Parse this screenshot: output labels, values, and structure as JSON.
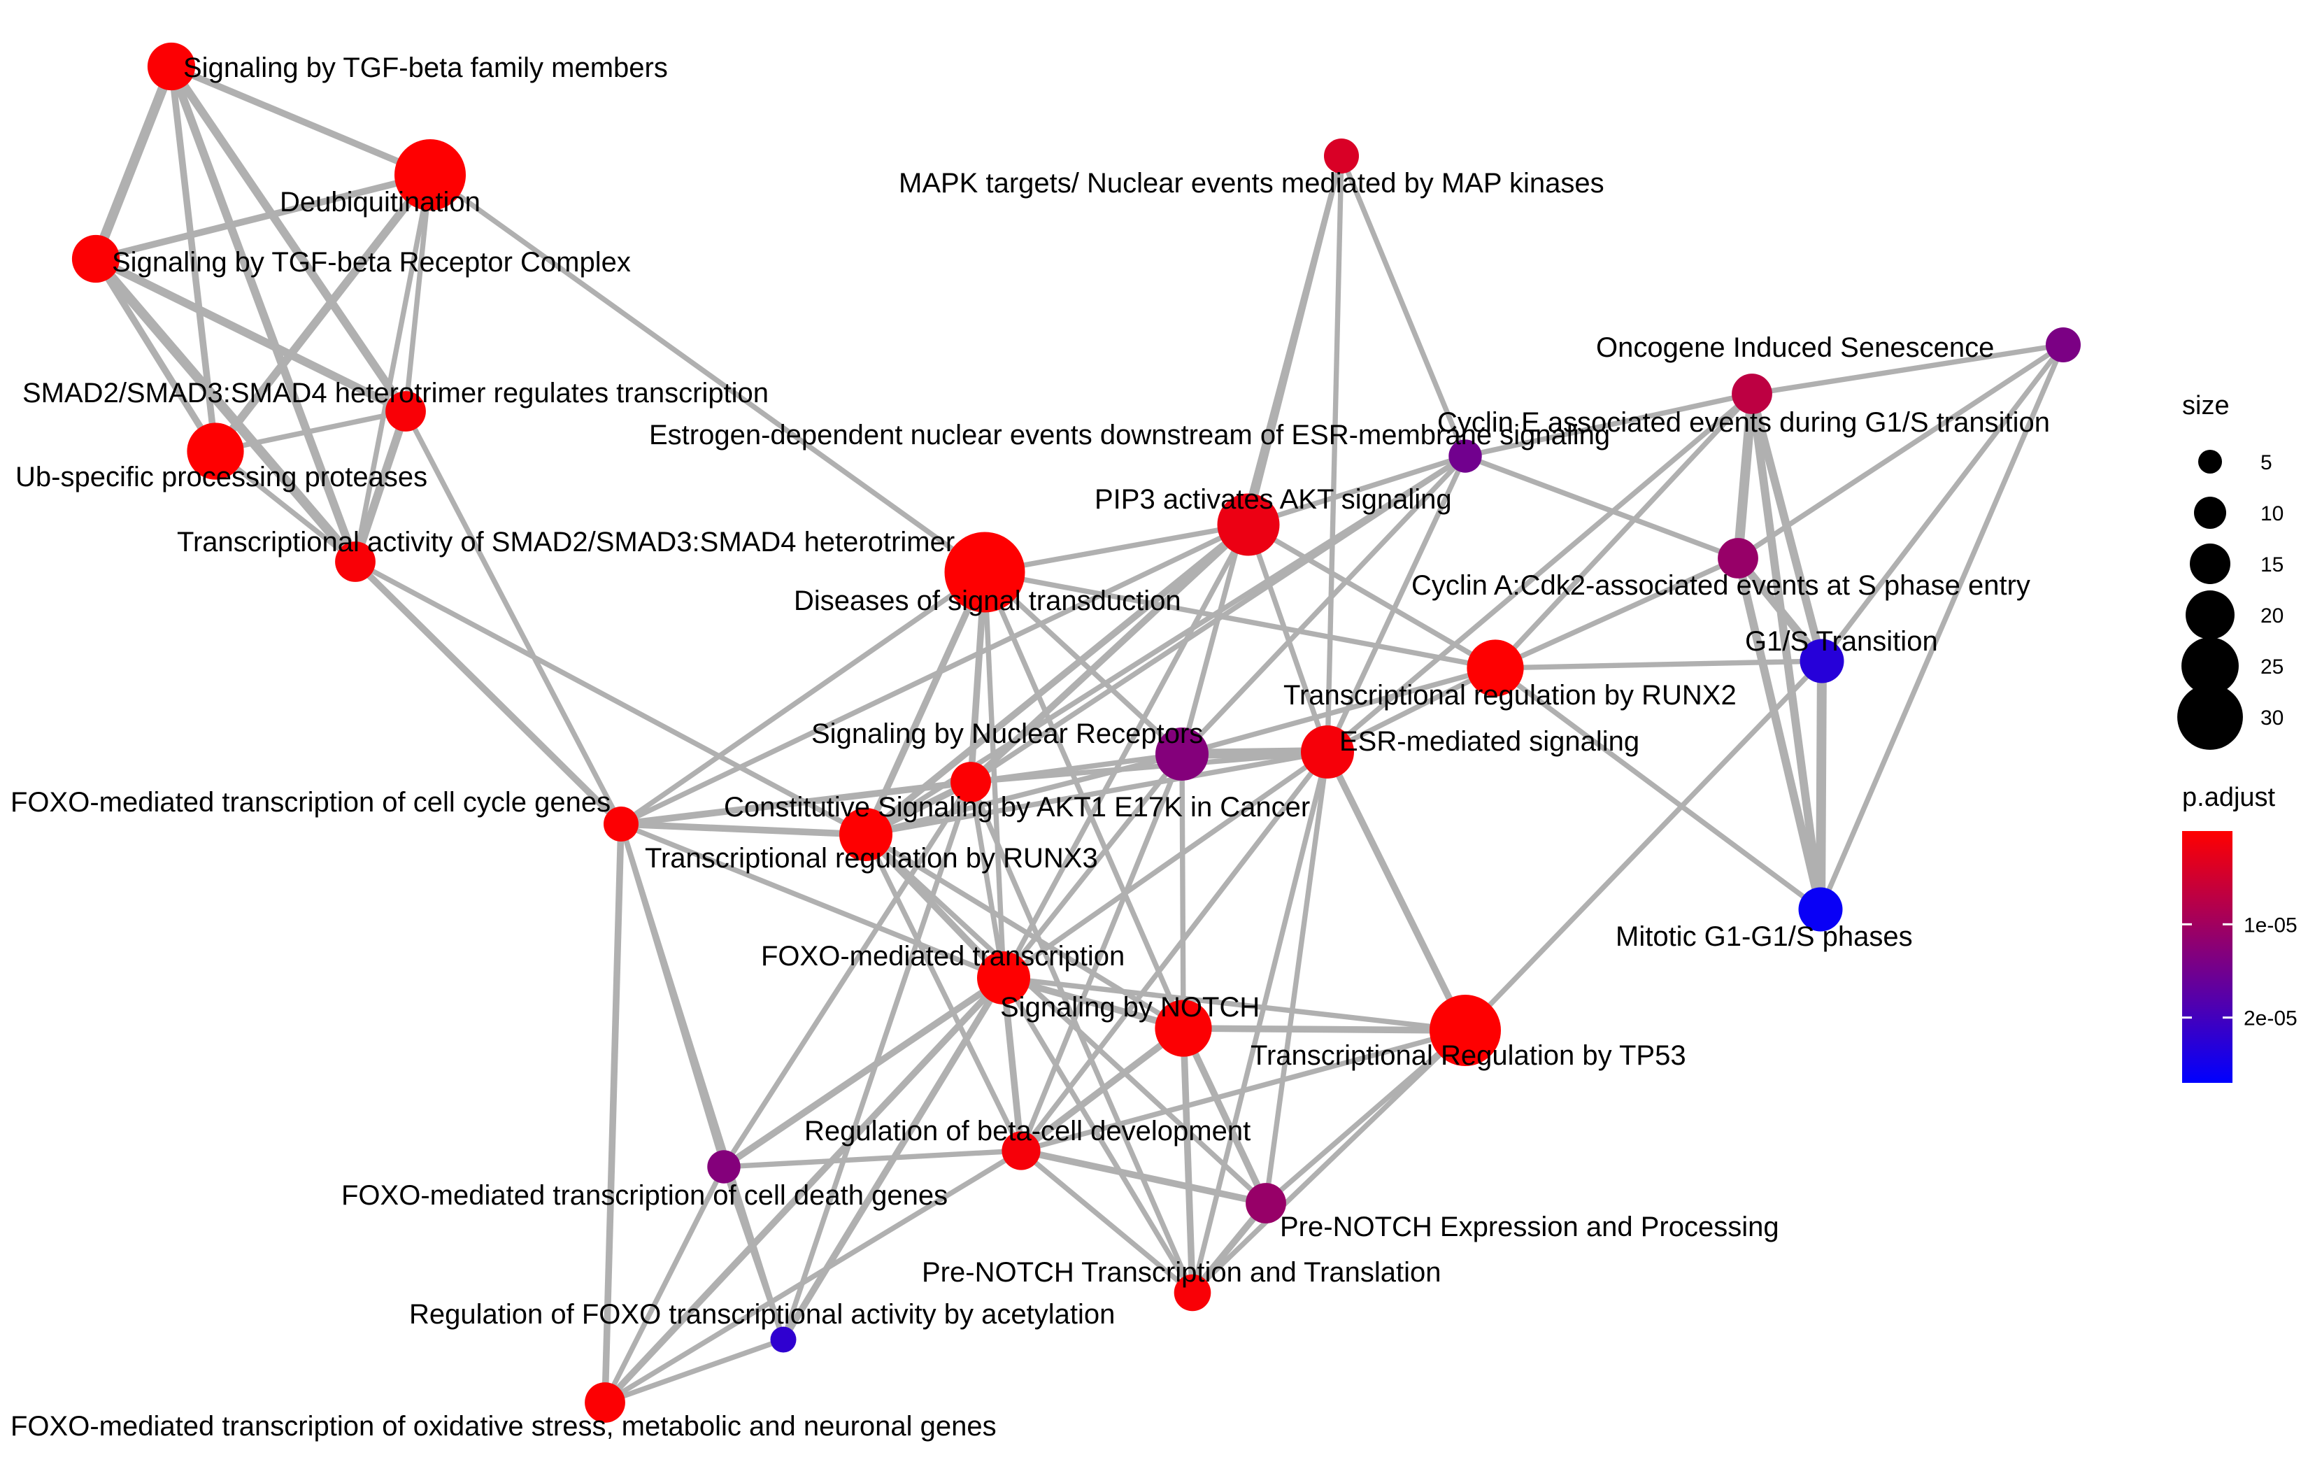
{
  "network": {
    "nodes": [
      {
        "id": "tgf_family",
        "label": "Signaling by TGF-beta family members",
        "size": 17,
        "p_adjust": 3e-07
      },
      {
        "id": "deubiq",
        "label": "Deubiquitination",
        "size": 30,
        "p_adjust": 1e-07
      },
      {
        "id": "tgf_receptor",
        "label": "Signaling by TGF-beta Receptor Complex",
        "size": 17,
        "p_adjust": 3e-07
      },
      {
        "id": "smad_regulates",
        "label": "SMAD2/SMAD3:SMAD4 heterotrimer regulates transcription",
        "size": 13,
        "p_adjust": 6e-07
      },
      {
        "id": "usp",
        "label": "Ub-specific processing proteases",
        "size": 22,
        "p_adjust": 1e-07
      },
      {
        "id": "smad_activity",
        "label": "Transcriptional activity of SMAD2/SMAD3:SMAD4 heterotrimer",
        "size": 13,
        "p_adjust": 6e-07
      },
      {
        "id": "mapk",
        "label": "MAPK targets/ Nuclear events mediated by MAP kinases",
        "size": 10,
        "p_adjust": 4e-06
      },
      {
        "id": "oncogene",
        "label": "Oncogene Induced Senescence",
        "size": 10,
        "p_adjust": 1.4e-05
      },
      {
        "id": "cyclin_e",
        "label": "Cyclin E associated events during G1/S transition",
        "size": 13,
        "p_adjust": 7e-06
      },
      {
        "id": "estrogen",
        "label": "Estrogen-dependent nuclear events downstream of ESR-membrane signaling",
        "size": 9,
        "p_adjust": 1.5e-05
      },
      {
        "id": "pip3",
        "label": "PIP3 activates AKT signaling",
        "size": 25,
        "p_adjust": 2e-06
      },
      {
        "id": "diseases",
        "label": "Diseases of signal transduction",
        "size": 35,
        "p_adjust": 1e-07
      },
      {
        "id": "cyclin_a",
        "label": "Cyclin A:Cdk2-associated events at S phase entry",
        "size": 13,
        "p_adjust": 1.1e-05
      },
      {
        "id": "runx2",
        "label": "Transcriptional regulation by RUNX2",
        "size": 22,
        "p_adjust": 1e-07
      },
      {
        "id": "g1s",
        "label": "G1/S Transition",
        "size": 15,
        "p_adjust": 2.3e-05
      },
      {
        "id": "nuclear_receptors",
        "label": "Signaling by Nuclear Receptors",
        "size": 20,
        "p_adjust": 1.3e-05
      },
      {
        "id": "esr",
        "label": "ESR-mediated signaling",
        "size": 20,
        "p_adjust": 1e-06
      },
      {
        "id": "akt1",
        "label": "Constitutive Signaling by AKT1 E17K in Cancer",
        "size": 13,
        "p_adjust": 3e-07
      },
      {
        "id": "foxo_cell_cycle",
        "label": "FOXO-mediated transcription of cell cycle genes",
        "size": 10,
        "p_adjust": 3e-07
      },
      {
        "id": "runx3",
        "label": "Transcriptional regulation by RUNX3",
        "size": 20,
        "p_adjust": 1e-07
      },
      {
        "id": "mitotic",
        "label": "Mitotic G1-G1/S phases",
        "size": 15,
        "p_adjust": 2.6e-05
      },
      {
        "id": "foxo",
        "label": "FOXO-mediated transcription",
        "size": 20,
        "p_adjust": 1e-07
      },
      {
        "id": "notch",
        "label": "Signaling by NOTCH",
        "size": 22,
        "p_adjust": 3e-07
      },
      {
        "id": "tp53",
        "label": "Transcriptional Regulation by TP53",
        "size": 30,
        "p_adjust": 1e-07
      },
      {
        "id": "beta_cell",
        "label": "Regulation of beta-cell development",
        "size": 12,
        "p_adjust": 1e-06
      },
      {
        "id": "foxo_death",
        "label": "FOXO-mediated transcription of cell death genes",
        "size": 9,
        "p_adjust": 1.3e-05
      },
      {
        "id": "prenotch_expr",
        "label": "Pre-NOTCH Expression and Processing",
        "size": 13,
        "p_adjust": 1.1e-05
      },
      {
        "id": "prenotch_trans",
        "label": "Pre-NOTCH Transcription and Translation",
        "size": 11,
        "p_adjust": 6e-07
      },
      {
        "id": "foxo_acetyl",
        "label": "Regulation of FOXO transcriptional activity by acetylation",
        "size": 5,
        "p_adjust": 2.2e-05
      },
      {
        "id": "foxo_oxidative",
        "label": "FOXO-mediated transcription of oxidative stress, metabolic and neuronal genes",
        "size": 13,
        "p_adjust": 3e-07
      }
    ],
    "edges": [
      [
        "tgf_family",
        "deubiq",
        3
      ],
      [
        "tgf_family",
        "tgf_receptor",
        5
      ],
      [
        "tgf_family",
        "smad_regulates",
        4
      ],
      [
        "tgf_family",
        "usp",
        3
      ],
      [
        "tgf_family",
        "smad_activity",
        4
      ],
      [
        "deubiq",
        "tgf_receptor",
        3
      ],
      [
        "deubiq",
        "smad_regulates",
        2
      ],
      [
        "deubiq",
        "usp",
        4
      ],
      [
        "deubiq",
        "smad_activity",
        2
      ],
      [
        "deubiq",
        "diseases",
        2
      ],
      [
        "tgf_receptor",
        "smad_regulates",
        4
      ],
      [
        "tgf_receptor",
        "usp",
        3
      ],
      [
        "tgf_receptor",
        "smad_activity",
        5
      ],
      [
        "smad_regulates",
        "usp",
        2
      ],
      [
        "smad_regulates",
        "smad_activity",
        4
      ],
      [
        "smad_regulates",
        "foxo_cell_cycle",
        2
      ],
      [
        "usp",
        "smad_activity",
        2
      ],
      [
        "smad_activity",
        "foxo_cell_cycle",
        3
      ],
      [
        "smad_activity",
        "runx3",
        2
      ],
      [
        "mapk",
        "pip3",
        2
      ],
      [
        "mapk",
        "estrogen",
        2
      ],
      [
        "mapk",
        "esr",
        2
      ],
      [
        "mapk",
        "nuclear_receptors",
        2
      ],
      [
        "oncogene",
        "cyclin_e",
        2
      ],
      [
        "oncogene",
        "cyclin_a",
        2
      ],
      [
        "oncogene",
        "g1s",
        2
      ],
      [
        "oncogene",
        "mitotic",
        2
      ],
      [
        "cyclin_e",
        "cyclin_a",
        5
      ],
      [
        "cyclin_e",
        "g1s",
        4
      ],
      [
        "cyclin_e",
        "mitotic",
        4
      ],
      [
        "cyclin_e",
        "runx2",
        2
      ],
      [
        "cyclin_e",
        "estrogen",
        2
      ],
      [
        "cyclin_e",
        "esr",
        2
      ],
      [
        "cyclin_a",
        "g1s",
        4
      ],
      [
        "cyclin_a",
        "mitotic",
        4
      ],
      [
        "cyclin_a",
        "runx2",
        2
      ],
      [
        "cyclin_a",
        "estrogen",
        2
      ],
      [
        "g1s",
        "mitotic",
        5
      ],
      [
        "g1s",
        "tp53",
        2
      ],
      [
        "g1s",
        "runx2",
        2
      ],
      [
        "estrogen",
        "pip3",
        2
      ],
      [
        "estrogen",
        "nuclear_receptors",
        2
      ],
      [
        "estrogen",
        "esr",
        2
      ],
      [
        "estrogen",
        "akt1",
        2
      ],
      [
        "estrogen",
        "runx3",
        2
      ],
      [
        "pip3",
        "diseases",
        2
      ],
      [
        "pip3",
        "akt1",
        3
      ],
      [
        "pip3",
        "runx3",
        3
      ],
      [
        "pip3",
        "esr",
        2
      ],
      [
        "pip3",
        "runx2",
        2
      ],
      [
        "pip3",
        "foxo",
        2
      ],
      [
        "pip3",
        "foxo_cell_cycle",
        2
      ],
      [
        "diseases",
        "akt1",
        3
      ],
      [
        "diseases",
        "runx3",
        3
      ],
      [
        "diseases",
        "foxo",
        2
      ],
      [
        "diseases",
        "nuclear_receptors",
        2
      ],
      [
        "diseases",
        "notch",
        2
      ],
      [
        "diseases",
        "runx2",
        2
      ],
      [
        "diseases",
        "foxo_cell_cycle",
        2
      ],
      [
        "runx2",
        "esr",
        2
      ],
      [
        "runx2",
        "mitotic",
        2
      ],
      [
        "runx2",
        "nuclear_receptors",
        2
      ],
      [
        "nuclear_receptors",
        "esr",
        5
      ],
      [
        "nuclear_receptors",
        "akt1",
        2
      ],
      [
        "nuclear_receptors",
        "runx3",
        2
      ],
      [
        "nuclear_receptors",
        "foxo",
        2
      ],
      [
        "nuclear_receptors",
        "notch",
        2
      ],
      [
        "nuclear_receptors",
        "beta_cell",
        2
      ],
      [
        "esr",
        "akt1",
        2
      ],
      [
        "esr",
        "runx3",
        2
      ],
      [
        "esr",
        "tp53",
        3
      ],
      [
        "esr",
        "foxo",
        2
      ],
      [
        "esr",
        "beta_cell",
        2
      ],
      [
        "esr",
        "prenotch_expr",
        2
      ],
      [
        "esr",
        "prenotch_trans",
        2
      ],
      [
        "akt1",
        "runx3",
        3
      ],
      [
        "akt1",
        "foxo",
        2
      ],
      [
        "akt1",
        "foxo_cell_cycle",
        3
      ],
      [
        "akt1",
        "foxo_death",
        2
      ],
      [
        "akt1",
        "foxo_acetyl",
        2
      ],
      [
        "akt1",
        "prenotch_trans",
        2
      ],
      [
        "foxo_cell_cycle",
        "runx3",
        3
      ],
      [
        "foxo_cell_cycle",
        "foxo",
        2
      ],
      [
        "foxo_cell_cycle",
        "foxo_death",
        2
      ],
      [
        "foxo_cell_cycle",
        "foxo_acetyl",
        2
      ],
      [
        "foxo_cell_cycle",
        "foxo_oxidative",
        3
      ],
      [
        "runx3",
        "foxo",
        3
      ],
      [
        "runx3",
        "notch",
        2
      ],
      [
        "runx3",
        "beta_cell",
        2
      ],
      [
        "runx3",
        "prenotch_expr",
        2
      ],
      [
        "foxo",
        "notch",
        3
      ],
      [
        "foxo",
        "beta_cell",
        3
      ],
      [
        "foxo",
        "prenotch_trans",
        2
      ],
      [
        "foxo",
        "foxo_death",
        3
      ],
      [
        "foxo",
        "foxo_acetyl",
        3
      ],
      [
        "foxo",
        "foxo_oxidative",
        3
      ],
      [
        "foxo",
        "tp53",
        2
      ],
      [
        "notch",
        "tp53",
        3
      ],
      [
        "notch",
        "prenotch_expr",
        3
      ],
      [
        "notch",
        "prenotch_trans",
        3
      ],
      [
        "notch",
        "beta_cell",
        3
      ],
      [
        "tp53",
        "beta_cell",
        2
      ],
      [
        "tp53",
        "prenotch_expr",
        2
      ],
      [
        "tp53",
        "prenotch_trans",
        2
      ],
      [
        "beta_cell",
        "prenotch_expr",
        3
      ],
      [
        "beta_cell",
        "prenotch_trans",
        2
      ],
      [
        "beta_cell",
        "foxo_oxidative",
        2
      ],
      [
        "beta_cell",
        "foxo_death",
        2
      ],
      [
        "prenotch_expr",
        "prenotch_trans",
        3
      ],
      [
        "foxo_death",
        "foxo_acetyl",
        2
      ],
      [
        "foxo_death",
        "foxo_oxidative",
        2
      ],
      [
        "foxo_acetyl",
        "foxo_oxidative",
        2
      ]
    ]
  },
  "legend": {
    "size_title": "size",
    "size_breaks": [
      5,
      10,
      15,
      20,
      25,
      30
    ],
    "size_tick_labels": [
      "5",
      "10",
      "15",
      "20",
      "25",
      "30"
    ],
    "color_title": "p.adjust",
    "color_low": "#ff0000",
    "color_high": "#0000ff",
    "color_tick_labels": [
      "1e-05",
      "2e-05"
    ],
    "color_tick_values": [
      1e-05,
      2e-05
    ],
    "color_range": [
      0,
      2.7e-05
    ]
  },
  "colors": {
    "edge": "#b0b0b0",
    "low_p": "#ff0000",
    "high_p": "#0000ff"
  }
}
